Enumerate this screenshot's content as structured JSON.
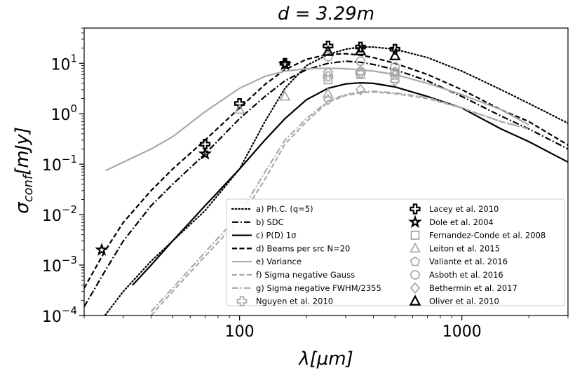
{
  "chart_data": {
    "type": "line",
    "title": "d = 3.29m",
    "title_parts": {
      "lhs": "d",
      "eq": " = ",
      "rhs": "3.29m"
    },
    "xlabel": "λ[μm]",
    "xlabel_parts": {
      "sym": "λ",
      "unit": "[μm]"
    },
    "ylabel": "σ_conf[mJy]",
    "ylabel_parts": {
      "sym": "σ",
      "sub": "conf",
      "unit": "[mJy]"
    },
    "x_scale": "log",
    "y_scale": "log",
    "xlim": [
      20,
      3000
    ],
    "ylim": [
      0.0001,
      50
    ],
    "x_ticks": [
      {
        "v": 100,
        "label": "100"
      },
      {
        "v": 1000,
        "label": "1000"
      }
    ],
    "y_ticks": [
      {
        "v": 0.0001,
        "base": "10",
        "exp": "−4"
      },
      {
        "v": 0.001,
        "base": "10",
        "exp": "−3"
      },
      {
        "v": 0.01,
        "base": "10",
        "exp": "−2"
      },
      {
        "v": 0.1,
        "base": "10",
        "exp": "−1"
      },
      {
        "v": 1,
        "base": "10",
        "exp": "0"
      },
      {
        "v": 10,
        "base": "10",
        "exp": "1"
      }
    ],
    "grid": false,
    "legend_placement": "bottom-right",
    "series": [
      {
        "name": "a) Ph.C. (q=5)",
        "color": "#000000",
        "dash": "dotted",
        "x": [
          22,
          30,
          40,
          50,
          70,
          100,
          130,
          160,
          200,
          250,
          300,
          350,
          400,
          500,
          700,
          1000,
          1500,
          2000,
          3000
        ],
        "y": [
          5e-05,
          0.0003,
          0.0012,
          0.003,
          0.012,
          0.08,
          0.7,
          3.2,
          9,
          15,
          19,
          21,
          21,
          19,
          13,
          7,
          3,
          1.6,
          0.65
        ]
      },
      {
        "name": "b) SDC",
        "color": "#000000",
        "dash": "dashdot",
        "x": [
          20,
          25,
          30,
          40,
          50,
          70,
          100,
          130,
          160,
          200,
          250,
          300,
          350,
          400,
          500,
          700,
          1000,
          1500,
          2000,
          3000
        ],
        "y": [
          0.00015,
          0.0008,
          0.003,
          0.015,
          0.04,
          0.16,
          0.8,
          2.2,
          4.5,
          7.5,
          10,
          11,
          10.5,
          9.5,
          7.5,
          4.5,
          2.2,
          0.9,
          0.5,
          0.2
        ]
      },
      {
        "name": "c) P(D) 1σ",
        "color": "#000000",
        "dash": "solid",
        "x": [
          33,
          40,
          50,
          70,
          100,
          130,
          160,
          200,
          250,
          300,
          350,
          400,
          500,
          700,
          1000,
          1500,
          2000,
          3000
        ],
        "y": [
          0.0004,
          0.001,
          0.003,
          0.015,
          0.08,
          0.3,
          0.8,
          1.9,
          3.2,
          3.9,
          4.1,
          4,
          3.4,
          2.2,
          1.3,
          0.5,
          0.28,
          0.11
        ]
      },
      {
        "name": "d) Beams per src N=20",
        "color": "#000000",
        "dash": "dashed",
        "x": [
          20,
          25,
          30,
          40,
          50,
          70,
          100,
          130,
          160,
          200,
          250,
          300,
          350,
          400,
          500,
          700,
          1000,
          1500,
          2000,
          3000
        ],
        "y": [
          0.00035,
          0.002,
          0.007,
          0.03,
          0.08,
          0.3,
          1.3,
          3.8,
          7.5,
          12,
          15,
          15.5,
          14.5,
          13,
          10,
          6,
          3,
          1.2,
          0.7,
          0.24
        ]
      },
      {
        "name": "e) Variance",
        "color": "#aaaaaa",
        "dash": "solid",
        "x": [
          25,
          30,
          40,
          50,
          70,
          100,
          130,
          160,
          200,
          250,
          300,
          350,
          400,
          500,
          700,
          1000,
          1500,
          2000
        ],
        "y": [
          0.075,
          0.11,
          0.2,
          0.35,
          1.1,
          3.2,
          5.5,
          7,
          7.8,
          8,
          7.8,
          7.4,
          7,
          6,
          4,
          2.4,
          1.2,
          0.6
        ]
      },
      {
        "name": "f) Sigma negative Gauss",
        "color": "#aaaaaa",
        "dash": "dashed",
        "x": [
          40,
          50,
          70,
          100,
          130,
          160,
          200,
          250,
          300,
          350,
          400,
          500,
          700,
          1000,
          1500,
          2000
        ],
        "y": [
          0.0001,
          0.0003,
          0.0015,
          0.008,
          0.05,
          0.25,
          0.7,
          1.7,
          2.3,
          2.6,
          2.7,
          2.5,
          2,
          1.3,
          0.7,
          0.5
        ]
      },
      {
        "name": "g) Sigma negative FWHM/2355",
        "color": "#aaaaaa",
        "dash": "dashdot",
        "x": [
          40,
          50,
          70,
          100,
          130,
          160,
          200,
          250,
          300,
          350,
          400,
          500,
          700,
          1000,
          1500,
          2000
        ],
        "y": [
          0.00012,
          0.00035,
          0.0018,
          0.01,
          0.07,
          0.3,
          0.8,
          1.8,
          2.4,
          2.7,
          2.8,
          2.6,
          2.1,
          1.3,
          0.7,
          0.5
        ]
      }
    ],
    "points": [
      {
        "name": "Nguyen et al. 2010",
        "marker": "cross-thin",
        "color": "#aaaaaa",
        "x": [
          250,
          350,
          500
        ],
        "y": [
          5.5,
          6.5,
          6
        ]
      },
      {
        "name": "Lacey et al. 2010",
        "marker": "cross",
        "color": "#000000",
        "x": [
          70,
          100,
          160,
          250,
          350,
          500
        ],
        "y": [
          0.25,
          1.6,
          10,
          22,
          21,
          19
        ]
      },
      {
        "name": "Dole et al. 2004",
        "marker": "star",
        "color": "#000000",
        "x": [
          24,
          70,
          160
        ],
        "y": [
          0.002,
          0.16,
          9.5
        ]
      },
      {
        "name": "Fernandez-Conde et al. 2008",
        "marker": "square",
        "color": "#aaaaaa",
        "x": [
          250,
          350,
          500
        ],
        "y": [
          4.7,
          6,
          5
        ]
      },
      {
        "name": "Leiton et al. 2015",
        "marker": "triangle",
        "color": "#aaaaaa",
        "x": [
          100,
          160,
          250
        ],
        "y": [
          1.2,
          2.2,
          2.5
        ]
      },
      {
        "name": "Valiante et al. 2016",
        "marker": "pentagon",
        "color": "#aaaaaa",
        "x": [
          250,
          350,
          500
        ],
        "y": [
          6.5,
          7,
          6.8
        ]
      },
      {
        "name": "Asboth et al. 2016",
        "marker": "circle",
        "color": "#aaaaaa",
        "x": [
          250,
          350,
          500
        ],
        "y": [
          13.5,
          11,
          8.5
        ]
      },
      {
        "name": "Bethermin et al. 2017",
        "marker": "diamond",
        "color": "#aaaaaa",
        "x": [
          250,
          350,
          500
        ],
        "y": [
          1.9,
          3,
          4.5
        ]
      },
      {
        "name": "Oliver et al. 2010",
        "marker": "triangle",
        "color": "#000000",
        "x": [
          250,
          350,
          500
        ],
        "y": [
          17,
          17.5,
          14
        ]
      }
    ],
    "legend_left": [
      "a) Ph.C. (q=5)",
      "b) SDC",
      "c) P(D) 1σ",
      "d) Beams per src N=20",
      "e) Variance",
      "f) Sigma negative Gauss",
      "g) Sigma negative FWHM/2355",
      "Nguyen et al. 2010"
    ],
    "legend_right": [
      "Lacey et al. 2010",
      "Dole et al. 2004",
      "Fernandez-Conde et al. 2008",
      "Leiton et al. 2015",
      "Valiante et al. 2016",
      "Asboth et al. 2016",
      "Bethermin et al. 2017",
      "Oliver et al. 2010"
    ]
  }
}
